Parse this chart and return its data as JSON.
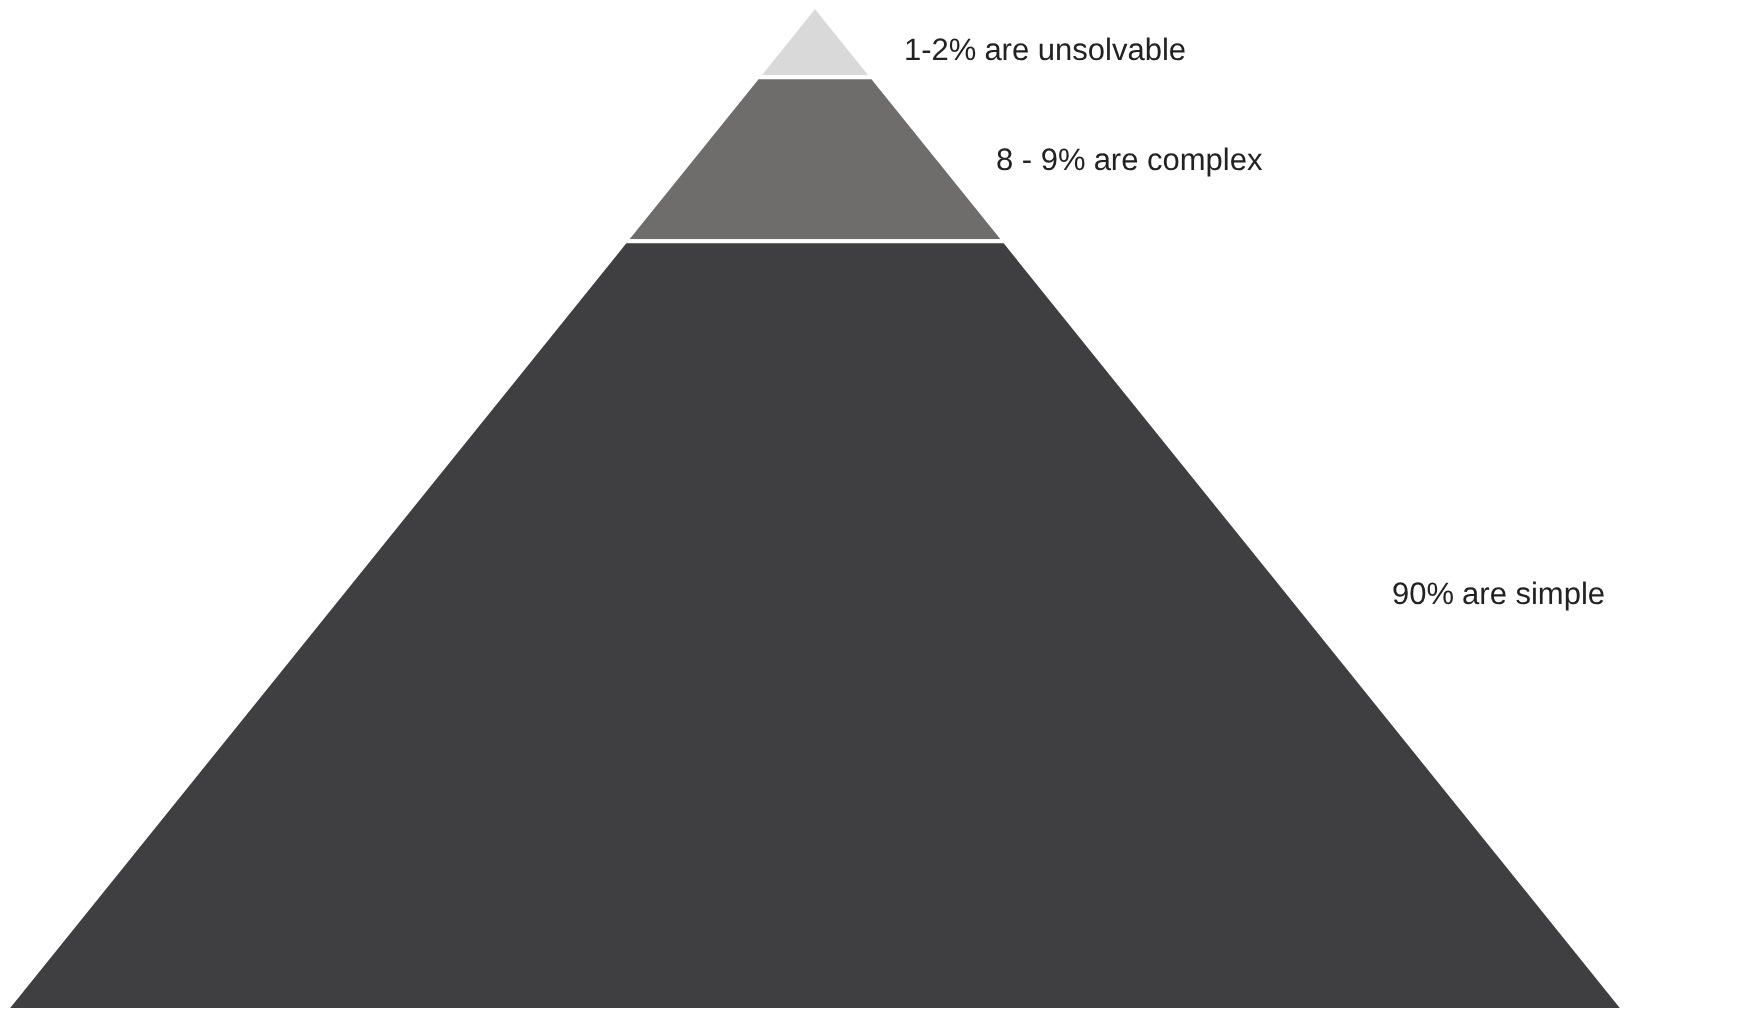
{
  "chart_data": {
    "type": "other",
    "categories": [
      "are unsolvable",
      "are complex",
      "are simple"
    ],
    "value_labels": [
      "1-2%",
      "8 - 9%",
      "90%"
    ],
    "values": [
      1.5,
      8.5,
      90
    ],
    "colors": [
      "#d9d9d9",
      "#6f6c6c",
      "#3f3f41"
    ]
  }
}
